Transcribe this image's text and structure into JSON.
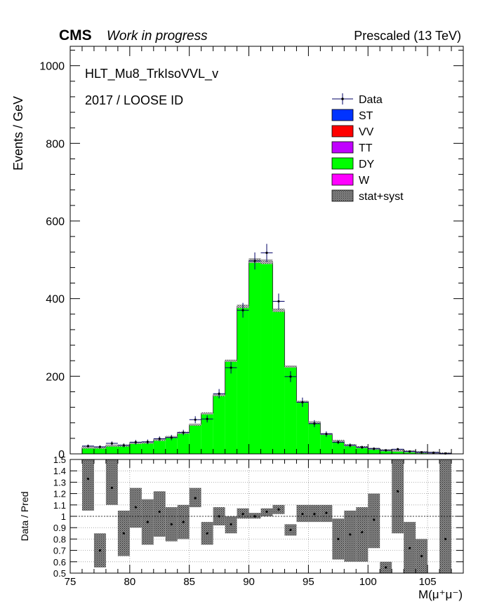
{
  "header": {
    "experiment": "CMS",
    "status": "Work in progress",
    "energy": "Prescaled (13 TeV)"
  },
  "annotations": {
    "trigger": "HLT_Mu8_TrkIsoVVL_v",
    "selection": "2017 / LOOSE ID"
  },
  "colors": {
    "ST": "#0033ff",
    "VV": "#ff0000",
    "TT": "#c000ff",
    "DY": "#00ff00",
    "W": "#ff00ff",
    "data": "#000066"
  },
  "legend": {
    "position": "top-right",
    "entries": [
      {
        "key": "data",
        "label": "Data"
      },
      {
        "key": "ST",
        "label": "ST"
      },
      {
        "key": "VV",
        "label": "VV"
      },
      {
        "key": "TT",
        "label": "TT"
      },
      {
        "key": "DY",
        "label": "DY"
      },
      {
        "key": "W",
        "label": "W"
      },
      {
        "key": "unc",
        "label": "stat+syst"
      }
    ]
  },
  "chart_data": [
    {
      "type": "bar",
      "panel": "main",
      "xlabel": "M(μ⁺μ⁻)",
      "ylabel": "Events / GeV",
      "xlim": [
        75,
        108
      ],
      "ylim": [
        0,
        1050
      ],
      "yticks": [
        0,
        200,
        400,
        600,
        800,
        1000
      ],
      "bin_edges": [
        76,
        77,
        78,
        79,
        80,
        81,
        82,
        83,
        84,
        85,
        86,
        87,
        88,
        89,
        90,
        91,
        92,
        93,
        94,
        95,
        96,
        97,
        98,
        99,
        100,
        101,
        102,
        103,
        104,
        105,
        106,
        107
      ],
      "series": [
        {
          "name": "DY",
          "values": [
            17,
            17,
            22,
            22,
            29,
            30,
            37,
            44,
            55,
            76,
            105,
            152,
            240,
            380,
            498,
            495,
            370,
            225,
            135,
            82,
            52,
            34,
            23,
            18,
            14,
            10,
            9,
            7,
            5,
            4,
            2
          ]
        },
        {
          "name": "Data",
          "values": [
            20,
            18,
            27,
            22,
            30,
            31,
            39,
            42,
            55,
            88,
            90,
            155,
            222,
            370,
            497,
            518,
            393,
            199,
            133,
            78,
            51,
            30,
            22,
            17,
            13,
            9,
            12,
            6,
            4,
            3,
            1
          ]
        }
      ],
      "data_errors": [
        4,
        4,
        5,
        5,
        6,
        6,
        6,
        7,
        7,
        9,
        9,
        12,
        15,
        19,
        22,
        23,
        20,
        14,
        12,
        9,
        7,
        5,
        5,
        4,
        4,
        3,
        3,
        2,
        2,
        2,
        1
      ],
      "grid": false
    },
    {
      "type": "scatter",
      "panel": "ratio",
      "xlabel": "M(μ⁺μ⁻)",
      "ylabel": "Data / Pred",
      "xlim": [
        75,
        108
      ],
      "ylim": [
        0.5,
        1.5
      ],
      "xticks": [
        75,
        80,
        85,
        90,
        95,
        100,
        105
      ],
      "yticks": [
        0.5,
        0.6,
        0.7,
        0.8,
        0.9,
        1,
        1.1,
        1.2,
        1.3,
        1.4,
        1.5
      ],
      "x": [
        76.5,
        77.5,
        78.5,
        79.5,
        80.5,
        81.5,
        82.5,
        83.5,
        84.5,
        85.5,
        86.5,
        87.5,
        88.5,
        89.5,
        90.5,
        91.5,
        92.5,
        93.5,
        94.5,
        95.5,
        96.5,
        97.5,
        98.5,
        99.5,
        100.5,
        101.5,
        102.5,
        103.5,
        104.5,
        105.5,
        106.5
      ],
      "values": [
        1.33,
        0.7,
        1.25,
        0.85,
        1.08,
        0.95,
        1.04,
        0.93,
        0.95,
        1.16,
        0.85,
        1.0,
        0.93,
        1.02,
        1.0,
        1.04,
        1.06,
        0.88,
        1.02,
        1.02,
        1.03,
        0.8,
        0.84,
        0.86,
        0.97,
        0.55,
        1.22,
        0.72,
        0.65,
        null,
        0.8
      ],
      "band_low": [
        1.05,
        0.55,
        1.1,
        0.65,
        0.9,
        0.75,
        0.82,
        0.78,
        0.8,
        1.08,
        0.75,
        0.92,
        0.85,
        0.98,
        0.98,
        1.0,
        1.02,
        0.83,
        0.95,
        0.95,
        0.95,
        0.62,
        0.6,
        0.6,
        0.72,
        0.5,
        0.85,
        0.5,
        0.5,
        null,
        0.5
      ],
      "band_high": [
        1.5,
        0.85,
        1.5,
        1.05,
        1.25,
        1.15,
        1.22,
        1.08,
        1.1,
        1.25,
        0.95,
        1.08,
        1.0,
        1.07,
        1.03,
        1.07,
        1.1,
        0.93,
        1.1,
        1.1,
        1.1,
        0.98,
        1.05,
        1.08,
        1.2,
        0.6,
        1.5,
        0.95,
        0.8,
        null,
        1.5
      ],
      "reference_line": 1,
      "grid": true
    }
  ]
}
